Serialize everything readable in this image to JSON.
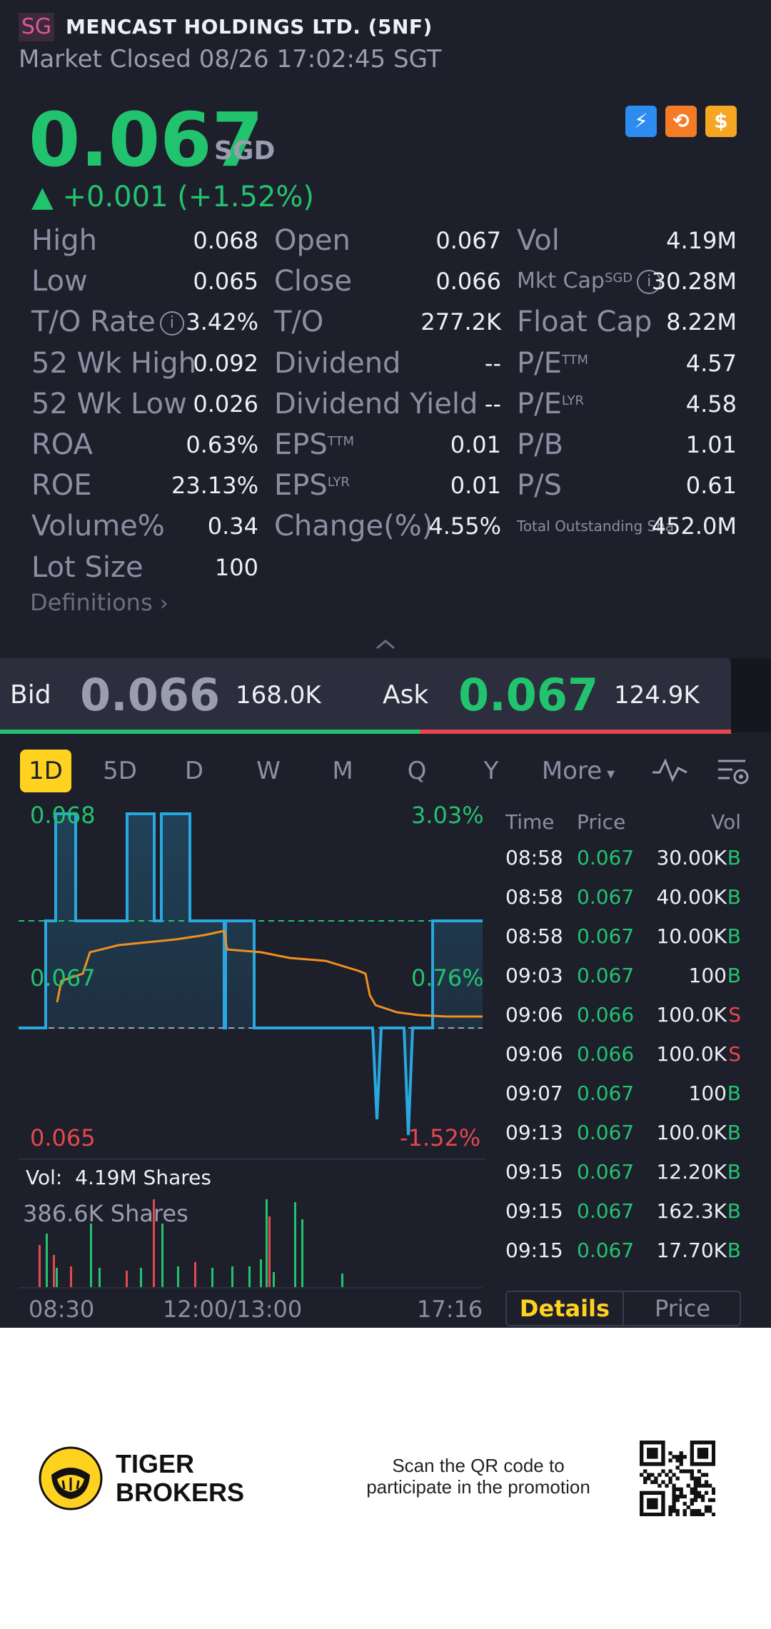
{
  "header": {
    "market_badge": "SG",
    "title": "MENCAST HOLDINGS LTD. (5NF)",
    "status": "Market Closed 08/26 17:02:45 SGT"
  },
  "quote": {
    "price": "0.067",
    "currency": "SGD",
    "change": "▲ +0.001 (+1.52%)",
    "icons": [
      "flash-1-icon",
      "orange-cycle-icon",
      "dollar-icon"
    ]
  },
  "stats": {
    "col1": [
      {
        "label": "High",
        "value": "0.068"
      },
      {
        "label": "Low",
        "value": "0.065"
      },
      {
        "label": "T/O Rate",
        "value": "3.42%"
      },
      {
        "label": "52 Wk High",
        "value": "0.092"
      },
      {
        "label": "52 Wk Low",
        "value": "0.026"
      },
      {
        "label": "ROA",
        "value": "0.63%"
      },
      {
        "label": "ROE",
        "value": "23.13%"
      },
      {
        "label": "Volume%",
        "value": "0.34"
      },
      {
        "label": "Lot Size",
        "value": "100"
      }
    ],
    "col2": [
      {
        "label": "Open",
        "value": "0.067"
      },
      {
        "label": "Close",
        "value": "0.066"
      },
      {
        "label": "T/O",
        "value": "277.2K"
      },
      {
        "label": "Dividend",
        "value": "--"
      },
      {
        "label": "Dividend Yield",
        "value": "--"
      },
      {
        "label": "EPS",
        "sup": "TTM",
        "value": "0.01"
      },
      {
        "label": "EPS",
        "sup": "LYR",
        "value": "0.01"
      },
      {
        "label": "Change(%)",
        "value": "4.55%"
      }
    ],
    "col3": [
      {
        "label": "Vol",
        "value": "4.19M"
      },
      {
        "label": "Mkt Cap",
        "sup": "SGD",
        "value": "30.28M"
      },
      {
        "label": "Float Cap",
        "value": "8.22M"
      },
      {
        "label": "P/E",
        "sup": "TTM",
        "value": "4.57"
      },
      {
        "label": "P/E",
        "sup": "LYR",
        "value": "4.58"
      },
      {
        "label": "P/B",
        "value": "1.01"
      },
      {
        "label": "P/S",
        "value": "0.61"
      },
      {
        "label": "Total Outstanding Sha",
        "value": "452.0M"
      }
    ],
    "definitions": "Definitions"
  },
  "bidask": {
    "bid_label": "Bid",
    "bid_price": "0.066",
    "bid_vol": "168.0K",
    "ask_label": "Ask",
    "ask_price": "0.067",
    "ask_vol": "124.9K"
  },
  "tabs": [
    "1D",
    "5D",
    "D",
    "W",
    "M",
    "Q",
    "Y",
    "More"
  ],
  "chart": {
    "high": "0.068",
    "mid": "0.067",
    "low": "0.065",
    "pct_high": "3.03%",
    "pct_mid": "0.76%",
    "pct_low": "-1.52%",
    "vol_label": "Vol:",
    "vol_value": "4.19M Shares",
    "vol_max": "386.6K Shares",
    "x_start": "08:30",
    "x_mid": "12:00/13:00",
    "x_end": "17:16"
  },
  "trades": {
    "headers": [
      "Time",
      "Price",
      "Vol"
    ],
    "rows": [
      {
        "time": "08:58",
        "price": "0.067",
        "vol": "30.00K",
        "side": "B"
      },
      {
        "time": "08:58",
        "price": "0.067",
        "vol": "40.00K",
        "side": "B"
      },
      {
        "time": "08:58",
        "price": "0.067",
        "vol": "10.00K",
        "side": "B"
      },
      {
        "time": "09:03",
        "price": "0.067",
        "vol": "100",
        "side": "B"
      },
      {
        "time": "09:06",
        "price": "0.066",
        "vol": "100.0K",
        "side": "S"
      },
      {
        "time": "09:06",
        "price": "0.066",
        "vol": "100.0K",
        "side": "S"
      },
      {
        "time": "09:07",
        "price": "0.067",
        "vol": "100",
        "side": "B"
      },
      {
        "time": "09:13",
        "price": "0.067",
        "vol": "100.0K",
        "side": "B"
      },
      {
        "time": "09:15",
        "price": "0.067",
        "vol": "12.20K",
        "side": "B"
      },
      {
        "time": "09:15",
        "price": "0.067",
        "vol": "162.3K",
        "side": "B"
      },
      {
        "time": "09:15",
        "price": "0.067",
        "vol": "17.70K",
        "side": "B"
      }
    ],
    "tab_details": "Details",
    "tab_price": "Price"
  },
  "footer": {
    "brand_line1": "TIGER",
    "brand_line2": "BROKERS",
    "promo_line1": "Scan the QR code to",
    "promo_line2": "participate in the promotion"
  },
  "colors": {
    "up": "#22c36e",
    "down": "#e5484d",
    "accent": "#ffd21f",
    "line": "#29a8e0",
    "avg": "#f0901e"
  }
}
